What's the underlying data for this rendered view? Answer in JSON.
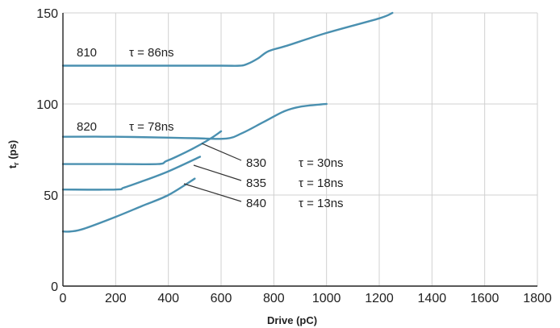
{
  "chart_data": {
    "type": "line",
    "title": "",
    "xlabel": "Drive (pC)",
    "ylabel": "t",
    "ylabel_subscript": "r",
    "ylabel_unit": "(ps)",
    "xlim": [
      0,
      1800
    ],
    "ylim": [
      0,
      150
    ],
    "xticks": [
      0,
      200,
      400,
      600,
      800,
      1000,
      1200,
      1400,
      1600,
      1800
    ],
    "yticks": [
      0,
      50,
      100,
      150
    ],
    "grid": true,
    "series": [
      {
        "name": "810",
        "tau": "τ = 86ns",
        "points": [
          [
            0,
            121
          ],
          [
            200,
            121
          ],
          [
            400,
            121
          ],
          [
            600,
            121
          ],
          [
            670,
            121
          ],
          [
            700,
            122
          ],
          [
            740,
            125
          ],
          [
            780,
            129
          ],
          [
            850,
            132
          ],
          [
            1000,
            139
          ],
          [
            1200,
            147
          ],
          [
            1250,
            150
          ]
        ]
      },
      {
        "name": "820",
        "tau": "τ = 78ns",
        "points": [
          [
            0,
            82
          ],
          [
            200,
            82
          ],
          [
            400,
            81.5
          ],
          [
            500,
            81.2
          ],
          [
            620,
            81
          ],
          [
            680,
            84
          ],
          [
            760,
            90
          ],
          [
            840,
            96
          ],
          [
            900,
            98.5
          ],
          [
            980,
            99.8
          ],
          [
            1000,
            100
          ]
        ]
      },
      {
        "name": "830",
        "tau": "τ = 30ns",
        "points": [
          [
            0,
            67
          ],
          [
            200,
            67
          ],
          [
            360,
            67
          ],
          [
            390,
            68.5
          ],
          [
            430,
            71
          ],
          [
            500,
            76
          ],
          [
            560,
            81
          ],
          [
            600,
            85
          ]
        ]
      },
      {
        "name": "835",
        "tau": "τ = 18ns",
        "points": [
          [
            0,
            53
          ],
          [
            200,
            53
          ],
          [
            230,
            54
          ],
          [
            300,
            57.5
          ],
          [
            400,
            63
          ],
          [
            520,
            71
          ]
        ]
      },
      {
        "name": "840",
        "tau": "τ = 13ns",
        "points": [
          [
            0,
            30
          ],
          [
            30,
            30
          ],
          [
            80,
            31.5
          ],
          [
            200,
            38
          ],
          [
            300,
            44
          ],
          [
            400,
            50
          ],
          [
            500,
            59
          ]
        ]
      }
    ],
    "line_color": "#4a90b0",
    "grid_color": "#d0d0d0",
    "axis_color": "#222222"
  }
}
